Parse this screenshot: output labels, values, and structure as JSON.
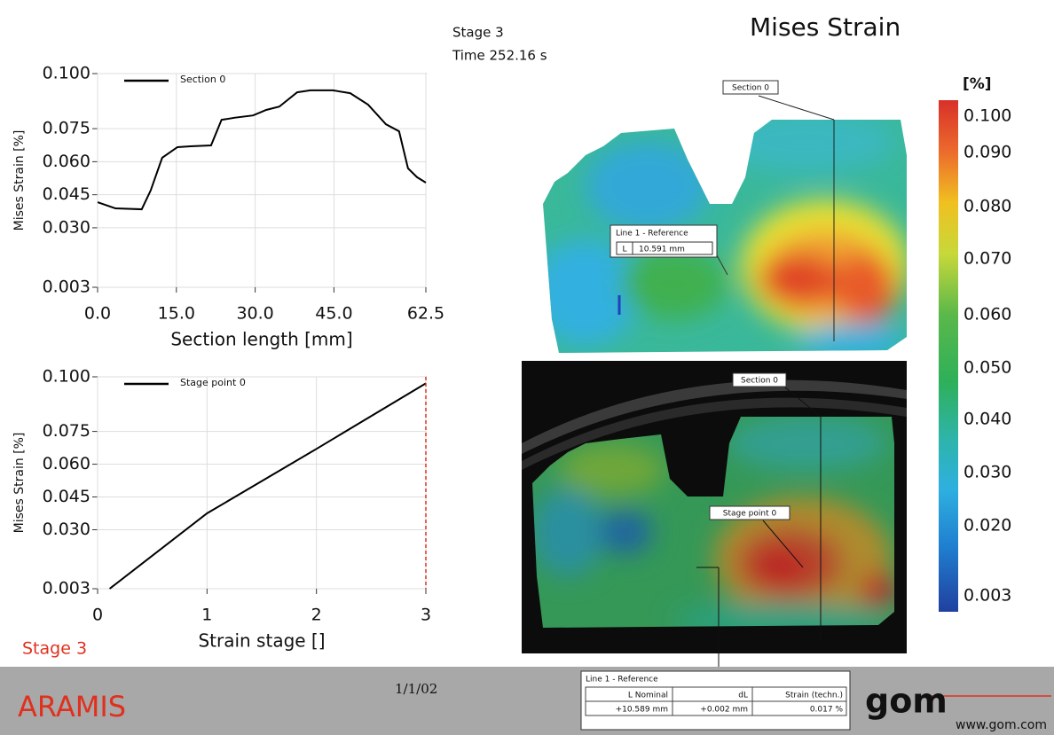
{
  "header": {
    "stage": "Stage 3",
    "time": "Time  252.16 s",
    "title": "Mises Strain"
  },
  "chart_data": [
    {
      "type": "line",
      "x_label": "Section length [mm]",
      "y_label": "Mises Strain [%]",
      "x": [
        0,
        3.4,
        8.4,
        10.1,
        12.3,
        15.2,
        17.7,
        21.6,
        23.6,
        26.2,
        29.6,
        32.1,
        34.6,
        38,
        40.5,
        44.8,
        48.1,
        51.5,
        54.9,
        57.4,
        59.1,
        60.8,
        62.5
      ],
      "series": [
        {
          "name": "Section 0",
          "color": "#000000",
          "values": [
            0.0416,
            0.0388,
            0.0384,
            0.0469,
            0.0618,
            0.0666,
            0.067,
            0.0674,
            0.079,
            0.08,
            0.081,
            0.0835,
            0.085,
            0.0915,
            0.0924,
            0.0924,
            0.0911,
            0.0859,
            0.077,
            0.0738,
            0.057,
            0.053,
            0.0505
          ]
        }
      ],
      "xlim": [
        0,
        62.5
      ],
      "xticks": [
        {
          "value": 0,
          "label": "0.0"
        },
        {
          "value": 15,
          "label": "15.0"
        },
        {
          "value": 30,
          "label": "30.0"
        },
        {
          "value": 45,
          "label": "45.0"
        },
        62.5
      ],
      "ylim": [
        0.003,
        0.1
      ],
      "yticks": [
        0.003,
        {
          "value": 0.03,
          "label": "0.030"
        },
        0.045,
        {
          "value": 0.06,
          "label": "0.060"
        },
        0.075,
        {
          "value": 0.1,
          "label": "0.100"
        }
      ],
      "grid": true
    },
    {
      "type": "line",
      "x_label": "Strain stage []",
      "y_label": "Mises Strain [%]",
      "x": [
        0.11,
        1,
        2,
        3
      ],
      "series": [
        {
          "name": "Stage point 0",
          "color": "#000000",
          "values": [
            0.003,
            0.0375,
            0.067,
            0.097
          ]
        }
      ],
      "xlim": [
        0,
        3
      ],
      "xticks": [
        0,
        1,
        2,
        3
      ],
      "ylim": [
        0.003,
        0.1
      ],
      "yticks": [
        0.003,
        {
          "value": 0.03,
          "label": "0.030"
        },
        0.045,
        {
          "value": 0.06,
          "label": "0.060"
        },
        0.075,
        {
          "value": 0.1,
          "label": "0.100"
        }
      ],
      "grid": true,
      "stage_marker": {
        "x": 3,
        "color": "#e0301e"
      }
    }
  ],
  "stage_label": "Stage 3",
  "colorbar": {
    "unit": "[%]",
    "labels": [
      "0.100",
      "0.090",
      "0.080",
      "0.070",
      "0.060",
      "0.050",
      "0.040",
      "0.030",
      "0.020",
      "0.003"
    ]
  },
  "map_labels": {
    "section_top": "Section 0",
    "line_ref": "Line 1 - Reference",
    "line_ref_symbol": "L",
    "line_ref_value": "10.591 mm",
    "section_bottom": "Section 0",
    "stage_point": "Stage point 0"
  },
  "table": {
    "title": "Line 1 - Reference",
    "header": [
      "L Nominal",
      "dL",
      "Strain (techn.)"
    ],
    "rows": [
      [
        "+10.589 mm",
        "+0.002 mm",
        "0.017 %"
      ]
    ]
  },
  "footer": {
    "product": "ARAMIS",
    "date": "1/1/02",
    "logo": "gom",
    "url": "www.gom.com"
  }
}
